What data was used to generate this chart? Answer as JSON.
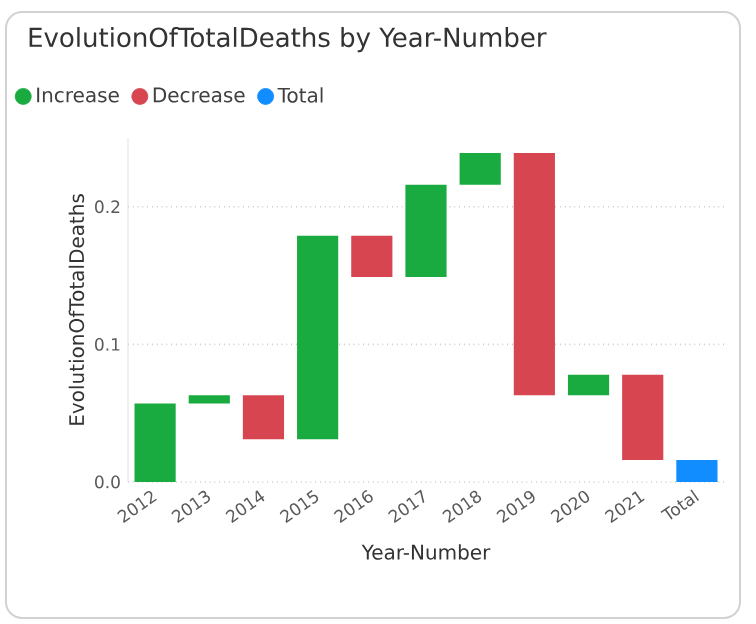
{
  "chart_data": {
    "type": "bar",
    "title": "EvolutionOfTotalDeaths by Year-Number",
    "xlabel": "Year-Number",
    "ylabel": "EvolutionOfTotalDeaths",
    "categories": [
      "2012",
      "2013",
      "2014",
      "2015",
      "2016",
      "2017",
      "2018",
      "2019",
      "2020",
      "2021",
      "Total"
    ],
    "series": [
      {
        "name": "Increase",
        "color": "#1aab40",
        "values": [
          0.057,
          0.006,
          null,
          0.148,
          null,
          0.067,
          0.023,
          null,
          0.015,
          null,
          null
        ],
        "base": [
          0,
          0.057,
          null,
          0.031,
          null,
          0.149,
          0.216,
          null,
          0.063,
          null,
          null
        ]
      },
      {
        "name": "Decrease",
        "color": "#d64550",
        "values": [
          null,
          null,
          -0.032,
          null,
          -0.03,
          null,
          null,
          -0.176,
          null,
          -0.062,
          null
        ],
        "base": [
          null,
          null,
          0.063,
          null,
          0.179,
          null,
          null,
          0.239,
          null,
          0.078,
          null
        ]
      },
      {
        "name": "Total",
        "color": "#118dff",
        "values": [
          null,
          null,
          null,
          null,
          null,
          null,
          null,
          null,
          null,
          null,
          0.016
        ],
        "base": [
          null,
          null,
          null,
          null,
          null,
          null,
          null,
          null,
          null,
          null,
          0
        ]
      }
    ],
    "ylim": [
      0,
      0.25
    ],
    "yticks": [
      {
        "value": 0,
        "label": "0.0"
      },
      {
        "value": 0.1,
        "label": "0.1"
      },
      {
        "value": 0.2,
        "label": "0.2"
      }
    ],
    "grid": "y",
    "legend": "top left"
  }
}
